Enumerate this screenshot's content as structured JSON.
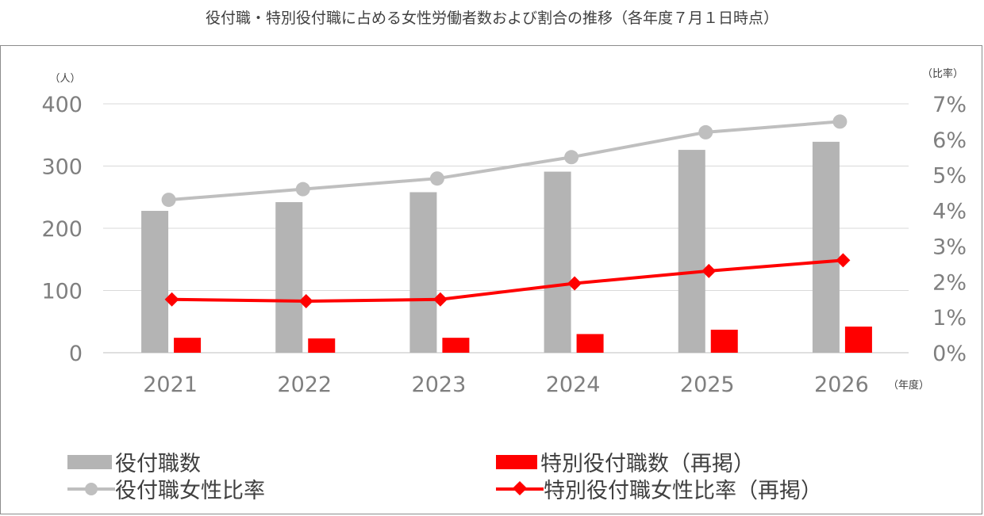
{
  "chart_data": {
    "type": "bar",
    "title": "役付職・特別役付職に占める女性労働者数および割合の推移（各年度７月１日時点）",
    "categories": [
      "2021",
      "2022",
      "2023",
      "2024",
      "2025",
      "2026"
    ],
    "xlabel": "（年度）",
    "ylabel_left": "（人）",
    "ylabel_right": "（比率）",
    "ylim_left": [
      0,
      400
    ],
    "ylim_right": [
      0,
      7
    ],
    "yticks_left": [
      "0",
      "100",
      "200",
      "300",
      "400"
    ],
    "yticks_right": [
      "0%",
      "1%",
      "2%",
      "3%",
      "4%",
      "5%",
      "6%",
      "7%"
    ],
    "grid": true,
    "legend_position": "bottom",
    "series": [
      {
        "name": "役付職数",
        "kind": "bar",
        "axis": "left",
        "color": "#b4b4b4",
        "values": [
          228,
          242,
          258,
          291,
          326,
          339
        ]
      },
      {
        "name": "特別役付職数（再掲）",
        "kind": "bar",
        "axis": "left",
        "color": "#ff0000",
        "values": [
          24,
          23,
          24,
          30,
          37,
          42
        ]
      },
      {
        "name": "役付職女性比率",
        "kind": "line",
        "marker": "circle",
        "axis": "right",
        "color": "#bfbfbf",
        "values": [
          4.3,
          4.6,
          4.9,
          5.5,
          6.2,
          6.5
        ]
      },
      {
        "name": "特別役付職女性比率（再掲）",
        "kind": "line",
        "marker": "diamond",
        "axis": "right",
        "color": "#ff0000",
        "values": [
          1.5,
          1.45,
          1.5,
          1.95,
          2.3,
          2.6
        ]
      }
    ]
  }
}
